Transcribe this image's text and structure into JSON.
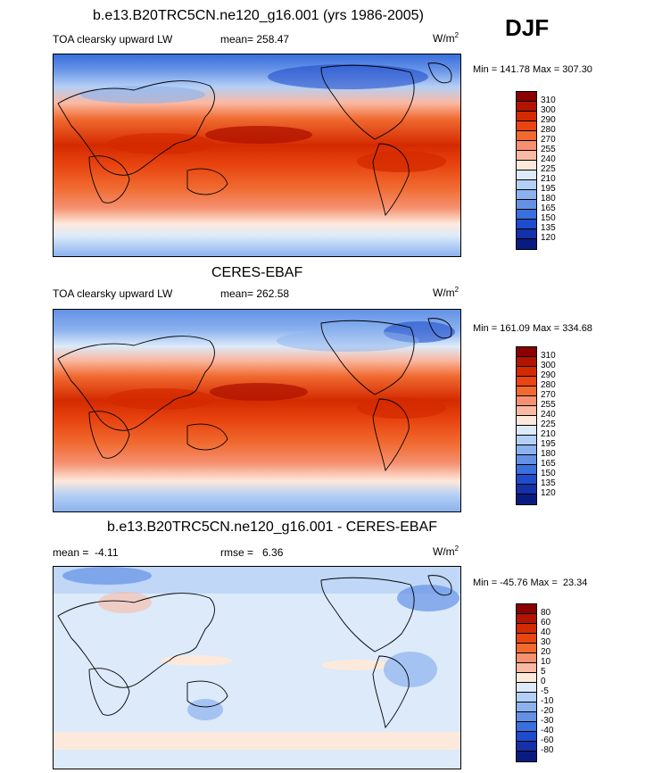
{
  "season": "DJF",
  "panels": [
    {
      "title": "b.e13.B20TRC5CN.ne120_g16.001 (yrs 1986-2005)",
      "left_label": "TOA clearsky upward LW",
      "stat_text": "mean= 258.47",
      "units_base": "W/m",
      "units_exp": "2",
      "minmax": "Min = 141.78 Max = 307.30",
      "colorbar_labels": [
        "310",
        "300",
        "290",
        "280",
        "270",
        "255",
        "240",
        "225",
        "210",
        "195",
        "180",
        "165",
        "150",
        "135",
        "120"
      ],
      "colorbar_colors": [
        "#8b0000",
        "#b21400",
        "#d42a00",
        "#e84510",
        "#f06a30",
        "#f59070",
        "#fab9a3",
        "#fde9dc",
        "#dceafa",
        "#b4cff5",
        "#8bb2ee",
        "#6491e6",
        "#3a6fdd",
        "#1f4ccc",
        "#1431a8",
        "#0a1b80"
      ]
    },
    {
      "title": "CERES-EBAF",
      "left_label": "TOA clearsky upward LW",
      "stat_text": "mean= 262.58",
      "units_base": "W/m",
      "units_exp": "2",
      "minmax": "Min = 161.09 Max = 334.68",
      "colorbar_labels": [
        "310",
        "300",
        "290",
        "280",
        "270",
        "255",
        "240",
        "225",
        "210",
        "195",
        "180",
        "165",
        "150",
        "135",
        "120"
      ],
      "colorbar_colors": [
        "#8b0000",
        "#b21400",
        "#d42a00",
        "#e84510",
        "#f06a30",
        "#f59070",
        "#fab9a3",
        "#fde9dc",
        "#dceafa",
        "#b4cff5",
        "#8bb2ee",
        "#6491e6",
        "#3a6fdd",
        "#1f4ccc",
        "#1431a8",
        "#0a1b80"
      ]
    },
    {
      "title": "b.e13.B20TRC5CN.ne120_g16.001 - CERES-EBAF",
      "left_label": "mean =  -4.11",
      "stat_text": "rmse =   6.36",
      "units_base": "W/m",
      "units_exp": "2",
      "minmax": "Min = -45.76 Max =  23.34",
      "colorbar_labels": [
        "80",
        "60",
        "40",
        "30",
        "20",
        "10",
        "5",
        "0",
        "-5",
        "-10",
        "-20",
        "-30",
        "-40",
        "-60",
        "-80"
      ],
      "colorbar_colors": [
        "#8b0000",
        "#b21400",
        "#d42a00",
        "#e84510",
        "#f06a30",
        "#f59070",
        "#fab9a3",
        "#fde9dc",
        "#dceafa",
        "#b4cff5",
        "#8bb2ee",
        "#6491e6",
        "#3a6fdd",
        "#1f4ccc",
        "#1431a8",
        "#0a1b80"
      ]
    }
  ],
  "chart_data": [
    {
      "type": "heatmap",
      "title": "b.e13.B20TRC5CN.ne120_g16.001 (yrs 1986-2005)",
      "variable": "TOA clearsky upward LW",
      "units": "W/m2",
      "mean": 258.47,
      "min": 141.78,
      "max": 307.3,
      "levels": [
        120,
        135,
        150,
        165,
        180,
        195,
        210,
        225,
        240,
        255,
        270,
        280,
        290,
        300,
        310
      ]
    },
    {
      "type": "heatmap",
      "title": "CERES-EBAF",
      "variable": "TOA clearsky upward LW",
      "units": "W/m2",
      "mean": 262.58,
      "min": 161.09,
      "max": 334.68,
      "levels": [
        120,
        135,
        150,
        165,
        180,
        195,
        210,
        225,
        240,
        255,
        270,
        280,
        290,
        300,
        310
      ]
    },
    {
      "type": "heatmap",
      "title": "b.e13.B20TRC5CN.ne120_g16.001 - CERES-EBAF",
      "units": "W/m2",
      "mean": -4.11,
      "rmse": 6.36,
      "min": -45.76,
      "max": 23.34,
      "levels": [
        -80,
        -60,
        -40,
        -30,
        -20,
        -10,
        -5,
        0,
        5,
        10,
        20,
        30,
        40,
        60,
        80
      ]
    }
  ]
}
